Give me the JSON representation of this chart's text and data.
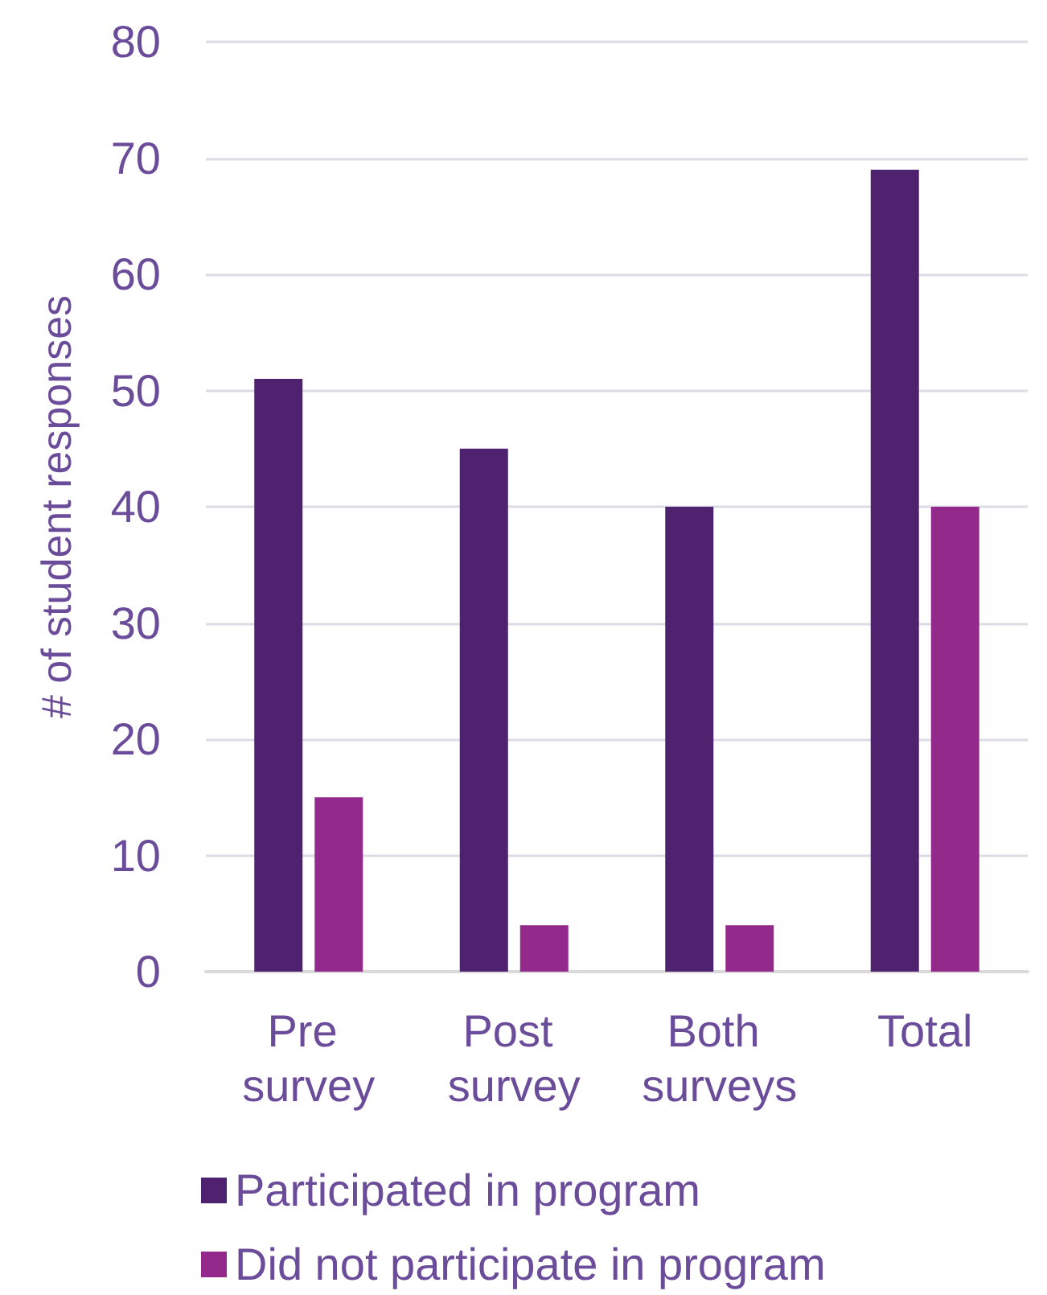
{
  "chart_data": {
    "type": "bar",
    "ylabel": "# of student responses",
    "categories": [
      "Pre survey",
      "Post survey",
      "Both surveys",
      "Total"
    ],
    "series": [
      {
        "name": "Participated in program",
        "color": "#4f2270",
        "values": [
          51,
          45,
          40,
          69
        ]
      },
      {
        "name": "Did not participate in program",
        "color": "#93298a",
        "values": [
          15,
          4,
          4,
          40
        ]
      }
    ],
    "ylim": [
      0,
      80
    ],
    "yticks": [
      0,
      10,
      20,
      30,
      40,
      50,
      60,
      70,
      80
    ],
    "grid": "y",
    "legend": "bottom"
  }
}
